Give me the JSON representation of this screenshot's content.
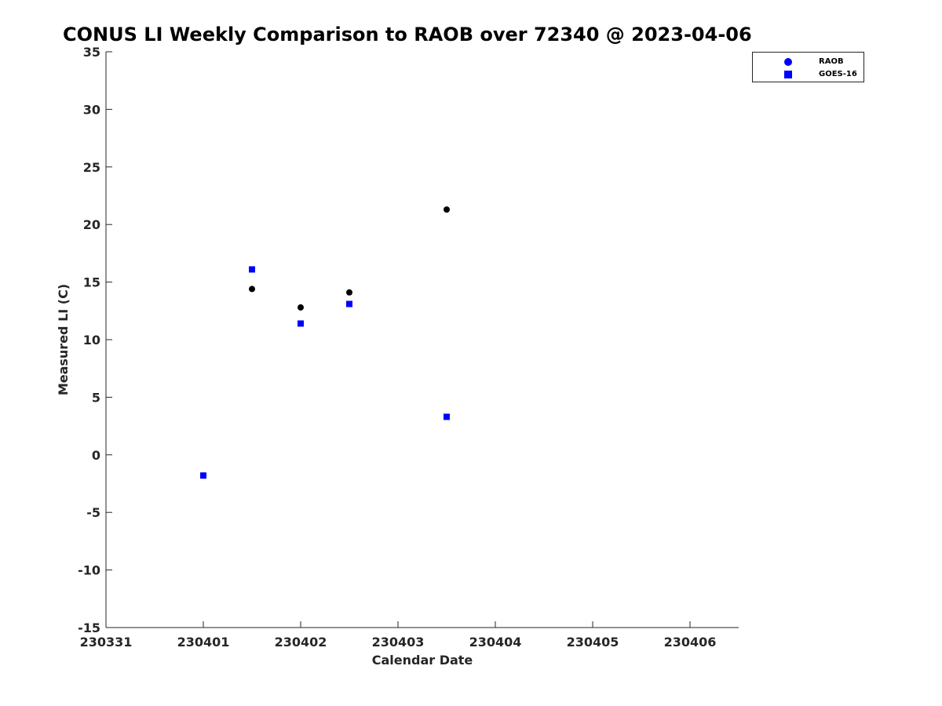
{
  "chart_data": {
    "type": "scatter",
    "title": "CONUS LI Weekly Comparison to RAOB over 72340 @ 2023-04-06",
    "xlabel": "Calendar Date",
    "ylabel": "Measured LI (C)",
    "xlim": [
      0,
      6.5
    ],
    "ylim": [
      -15,
      35
    ],
    "xticks": [
      0,
      1,
      2,
      3,
      4,
      5,
      6
    ],
    "xtick_labels": [
      "230331",
      "230401",
      "230402",
      "230403",
      "230404",
      "230405",
      "230406"
    ],
    "yticks": [
      -15,
      -10,
      -5,
      0,
      5,
      10,
      15,
      20,
      25,
      30,
      35
    ],
    "ytick_labels": [
      "-15",
      "-10",
      "-5",
      "0",
      "5",
      "10",
      "15",
      "20",
      "25",
      "30",
      "35"
    ],
    "grid": false,
    "legend_position": "top-right, outside plot",
    "series": [
      {
        "name": "RAOB",
        "marker": "circle",
        "color": "#000000",
        "legend_color": "#0000ff",
        "points": [
          {
            "x": 1.0,
            "y": -1.8
          },
          {
            "x": 1.5,
            "y": 14.4
          },
          {
            "x": 2.0,
            "y": 12.8
          },
          {
            "x": 2.5,
            "y": 14.1
          },
          {
            "x": 3.5,
            "y": 21.3
          }
        ]
      },
      {
        "name": "GOES-16",
        "marker": "square",
        "color": "#0000ff",
        "legend_color": "#0000ff",
        "points": [
          {
            "x": 1.0,
            "y": -1.8
          },
          {
            "x": 1.5,
            "y": 16.1
          },
          {
            "x": 2.0,
            "y": 11.4
          },
          {
            "x": 2.5,
            "y": 13.1
          },
          {
            "x": 3.5,
            "y": 3.3
          }
        ]
      }
    ]
  }
}
